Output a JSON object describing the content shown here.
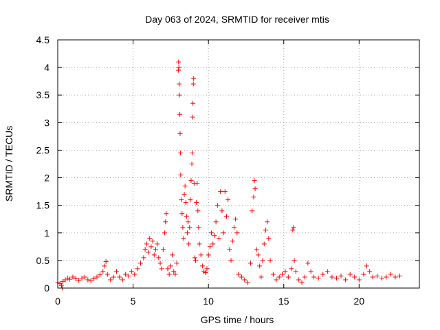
{
  "chart_data": {
    "type": "scatter",
    "title": "Day 063 of 2024, SRMTID for receiver mtis",
    "xlabel": "GPS time / hours",
    "ylabel": "SRMTID / TECUs",
    "xlim": [
      0,
      24
    ],
    "ylim": [
      0,
      4.5
    ],
    "x_ticks": [
      0,
      5,
      10,
      15,
      20
    ],
    "x_tick_labels": [
      "0",
      "5",
      "10",
      "15",
      "20"
    ],
    "y_ticks": [
      0,
      0.5,
      1,
      1.5,
      2,
      2.5,
      3,
      3.5,
      4,
      4.5
    ],
    "y_tick_labels": [
      "0",
      "0.5",
      "1",
      "1.5",
      "2",
      "2.5",
      "3",
      "3.5",
      "4",
      "4.5"
    ],
    "grid": true,
    "marker": "+",
    "series": [
      {
        "name": "SRMTID",
        "color": "#ff0000",
        "points": [
          [
            0.0,
            0.1
          ],
          [
            0.15,
            0.08
          ],
          [
            0.25,
            0.05
          ],
          [
            0.3,
            0.0
          ],
          [
            0.35,
            0.12
          ],
          [
            0.5,
            0.15
          ],
          [
            0.65,
            0.18
          ],
          [
            0.8,
            0.16
          ],
          [
            1.0,
            0.2
          ],
          [
            1.2,
            0.17
          ],
          [
            1.4,
            0.14
          ],
          [
            1.6,
            0.18
          ],
          [
            1.8,
            0.2
          ],
          [
            2.0,
            0.15
          ],
          [
            2.2,
            0.13
          ],
          [
            2.4,
            0.17
          ],
          [
            2.6,
            0.2
          ],
          [
            2.8,
            0.24
          ],
          [
            3.0,
            0.3
          ],
          [
            3.1,
            0.4
          ],
          [
            3.2,
            0.48
          ],
          [
            3.3,
            0.25
          ],
          [
            3.5,
            0.15
          ],
          [
            3.7,
            0.2
          ],
          [
            3.9,
            0.3
          ],
          [
            4.1,
            0.2
          ],
          [
            4.3,
            0.15
          ],
          [
            4.5,
            0.25
          ],
          [
            4.7,
            0.22
          ],
          [
            4.9,
            0.3
          ],
          [
            5.1,
            0.25
          ],
          [
            5.3,
            0.35
          ],
          [
            5.5,
            0.45
          ],
          [
            5.7,
            0.55
          ],
          [
            5.8,
            0.7
          ],
          [
            5.9,
            0.8
          ],
          [
            6.0,
            0.65
          ],
          [
            6.1,
            0.9
          ],
          [
            6.2,
            0.75
          ],
          [
            6.3,
            0.85
          ],
          [
            6.4,
            0.6
          ],
          [
            6.5,
            0.7
          ],
          [
            6.6,
            0.8
          ],
          [
            6.7,
            0.55
          ],
          [
            6.8,
            0.45
          ],
          [
            6.9,
            0.35
          ],
          [
            7.0,
            0.7
          ],
          [
            7.1,
            1.0
          ],
          [
            7.15,
            1.2
          ],
          [
            7.2,
            1.35
          ],
          [
            7.3,
            0.35
          ],
          [
            7.4,
            0.25
          ],
          [
            7.5,
            0.4
          ],
          [
            7.6,
            0.6
          ],
          [
            7.7,
            0.3
          ],
          [
            7.8,
            0.25
          ],
          [
            7.9,
            0.45
          ],
          [
            8.0,
            3.95
          ],
          [
            8.02,
            4.1
          ],
          [
            8.04,
            4.0
          ],
          [
            8.06,
            3.7
          ],
          [
            8.08,
            3.5
          ],
          [
            8.1,
            3.15
          ],
          [
            8.12,
            2.8
          ],
          [
            8.14,
            2.45
          ],
          [
            8.16,
            2.05
          ],
          [
            8.2,
            1.6
          ],
          [
            8.25,
            1.35
          ],
          [
            8.3,
            1.1
          ],
          [
            8.35,
            0.9
          ],
          [
            8.4,
            1.7
          ],
          [
            8.45,
            1.85
          ],
          [
            8.5,
            1.55
          ],
          [
            8.55,
            1.3
          ],
          [
            8.6,
            1.0
          ],
          [
            8.65,
            1.2
          ],
          [
            8.7,
            0.8
          ],
          [
            8.75,
            1.1
          ],
          [
            8.8,
            1.6
          ],
          [
            8.85,
            1.95
          ],
          [
            8.9,
            2.25
          ],
          [
            8.92,
            2.45
          ],
          [
            8.95,
            3.1
          ],
          [
            8.97,
            3.35
          ],
          [
            9.0,
            3.7
          ],
          [
            9.02,
            3.8
          ],
          [
            9.05,
            1.9
          ],
          [
            9.1,
            0.55
          ],
          [
            9.15,
            0.5
          ],
          [
            9.2,
            1.55
          ],
          [
            9.25,
            1.9
          ],
          [
            9.3,
            1.4
          ],
          [
            9.35,
            1.1
          ],
          [
            9.4,
            0.8
          ],
          [
            9.5,
            0.6
          ],
          [
            9.6,
            0.4
          ],
          [
            9.7,
            0.3
          ],
          [
            9.8,
            0.28
          ],
          [
            9.9,
            0.35
          ],
          [
            10.0,
            0.6
          ],
          [
            10.1,
            0.75
          ],
          [
            10.2,
            1.0
          ],
          [
            10.3,
            0.8
          ],
          [
            10.4,
            0.95
          ],
          [
            10.5,
            1.2
          ],
          [
            10.6,
            1.5
          ],
          [
            10.7,
            0.9
          ],
          [
            10.8,
            1.75
          ],
          [
            10.9,
            1.4
          ],
          [
            11.0,
            1.0
          ],
          [
            11.1,
            1.75
          ],
          [
            11.2,
            1.3
          ],
          [
            11.3,
            1.6
          ],
          [
            11.4,
            0.7
          ],
          [
            11.5,
            0.5
          ],
          [
            11.6,
            0.85
          ],
          [
            11.7,
            1.1
          ],
          [
            11.8,
            1.25
          ],
          [
            11.9,
            1.0
          ],
          [
            12.0,
            0.25
          ],
          [
            12.2,
            0.2
          ],
          [
            12.4,
            0.15
          ],
          [
            12.6,
            0.1
          ],
          [
            12.8,
            0.45
          ],
          [
            12.9,
            1.4
          ],
          [
            13.0,
            1.65
          ],
          [
            13.05,
            1.95
          ],
          [
            13.1,
            1.8
          ],
          [
            13.2,
            0.7
          ],
          [
            13.3,
            0.6
          ],
          [
            13.4,
            0.4
          ],
          [
            13.5,
            0.2
          ],
          [
            13.6,
            0.5
          ],
          [
            13.7,
            0.8
          ],
          [
            13.8,
            1.05
          ],
          [
            13.9,
            1.2
          ],
          [
            14.0,
            0.9
          ],
          [
            14.1,
            0.5
          ],
          [
            14.3,
            0.25
          ],
          [
            14.5,
            0.15
          ],
          [
            14.7,
            0.2
          ],
          [
            14.9,
            0.25
          ],
          [
            15.1,
            0.3
          ],
          [
            15.3,
            0.2
          ],
          [
            15.5,
            0.35
          ],
          [
            15.6,
            1.05
          ],
          [
            15.65,
            1.1
          ],
          [
            15.7,
            0.5
          ],
          [
            15.8,
            0.3
          ],
          [
            16.0,
            0.15
          ],
          [
            16.2,
            0.1
          ],
          [
            16.4,
            0.2
          ],
          [
            16.6,
            0.45
          ],
          [
            16.8,
            0.3
          ],
          [
            17.0,
            0.2
          ],
          [
            17.3,
            0.18
          ],
          [
            17.6,
            0.25
          ],
          [
            17.9,
            0.3
          ],
          [
            18.2,
            0.2
          ],
          [
            18.5,
            0.18
          ],
          [
            18.8,
            0.22
          ],
          [
            19.1,
            0.15
          ],
          [
            19.4,
            0.25
          ],
          [
            19.7,
            0.2
          ],
          [
            20.0,
            0.15
          ],
          [
            20.3,
            0.25
          ],
          [
            20.5,
            0.4
          ],
          [
            20.7,
            0.3
          ],
          [
            20.9,
            0.2
          ],
          [
            21.2,
            0.22
          ],
          [
            21.5,
            0.18
          ],
          [
            21.8,
            0.2
          ],
          [
            22.1,
            0.25
          ],
          [
            22.4,
            0.2
          ],
          [
            22.7,
            0.22
          ]
        ]
      }
    ]
  }
}
